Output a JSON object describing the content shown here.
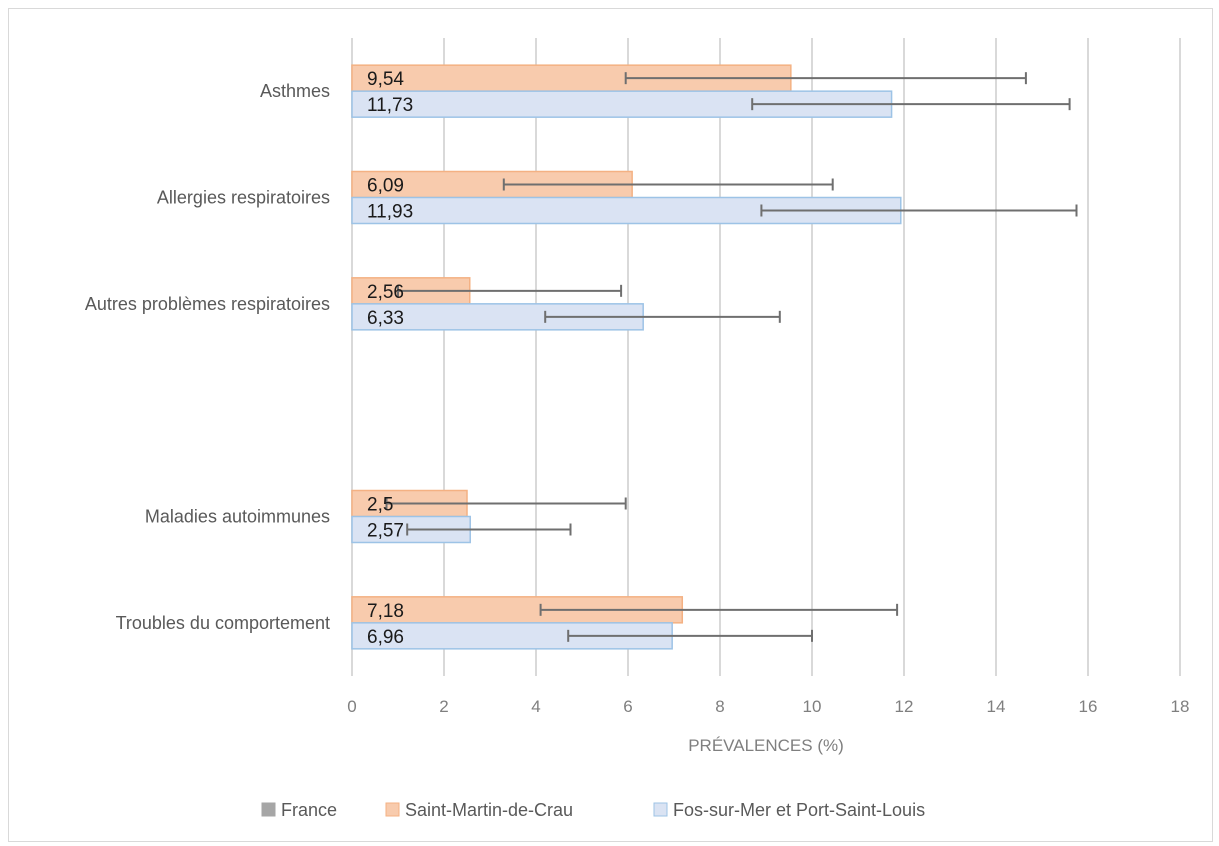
{
  "chart_data": {
    "type": "bar",
    "orientation": "horizontal",
    "xlabel": "PRÉVALENCES (%)",
    "ylabel": "",
    "xlim": [
      0,
      18
    ],
    "xticks": [
      0,
      2,
      4,
      6,
      8,
      10,
      12,
      14,
      16,
      18
    ],
    "grid": true,
    "legend_position": "bottom",
    "categories": [
      "Asthmes",
      "Allergies respiratoires",
      "Autres problèmes respiratoires",
      "",
      "Maladies autoimmunes",
      "Troubles du comportement"
    ],
    "series": [
      {
        "name": "France",
        "color": "#a6a6a6",
        "values": [
          null,
          null,
          null,
          null,
          null,
          null
        ]
      },
      {
        "name": "Saint-Martin-de-Crau",
        "color": "#f8cbad",
        "border": "#f4b183",
        "values": [
          9.54,
          6.09,
          2.56,
          null,
          2.5,
          7.18
        ],
        "labels": [
          "9,54",
          "6,09",
          "2,56",
          "",
          "2,5",
          "7,18"
        ],
        "error_low": [
          5.95,
          3.3,
          1.0,
          null,
          0.75,
          4.1
        ],
        "error_high": [
          14.65,
          10.45,
          5.85,
          null,
          5.95,
          11.85
        ]
      },
      {
        "name": "Fos-sur-Mer et Port-Saint-Louis",
        "color": "#dae3f3",
        "border": "#9dc3e6",
        "values": [
          11.73,
          11.93,
          6.33,
          null,
          2.57,
          6.96
        ],
        "labels": [
          "11,73",
          "11,93",
          "6,33",
          "",
          "2,57",
          "6,96"
        ],
        "error_low": [
          8.7,
          8.9,
          4.2,
          null,
          1.2,
          4.7
        ],
        "error_high": [
          15.6,
          15.75,
          9.3,
          null,
          4.75,
          10.0
        ]
      }
    ]
  }
}
